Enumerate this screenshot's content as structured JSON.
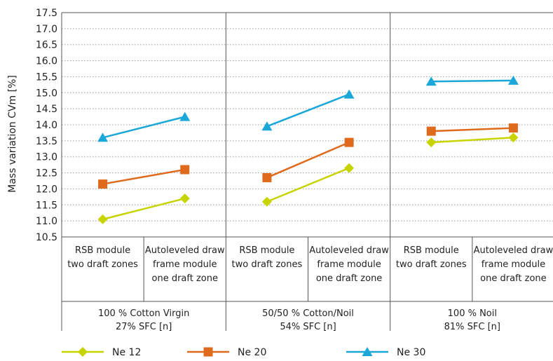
{
  "chart_data": {
    "type": "line",
    "title": "",
    "ylabel": "Mass variation CVm [%]",
    "ylim": [
      10.5,
      17.5
    ],
    "y_ticks": [
      "17.5",
      "17.0",
      "16.5",
      "16.0",
      "15.5",
      "15.0",
      "14.5",
      "14.0",
      "13.5",
      "13.0",
      "12.5",
      "12.0",
      "11.5",
      "11.0",
      "10.5"
    ],
    "grid": true,
    "legend_position": "bottom",
    "groups": [
      {
        "label_line1": "100 % Cotton Virgin",
        "label_line2": "27% SFC [n]",
        "categories": [
          {
            "line1": "RSB module",
            "line2": "two draft zones",
            "line3": ""
          },
          {
            "line1": "Autoleveled draw",
            "line2": "frame module",
            "line3": "one draft zone"
          }
        ]
      },
      {
        "label_line1": "50/50 % Cotton/Noil",
        "label_line2": "54% SFC [n]",
        "categories": [
          {
            "line1": "RSB module",
            "line2": "two draft zones",
            "line3": ""
          },
          {
            "line1": "Autoleveled draw",
            "line2": "frame module",
            "line3": "one draft zone"
          }
        ]
      },
      {
        "label_line1": "100 % Noil",
        "label_line2": "81% SFC [n]",
        "categories": [
          {
            "line1": "RSB module",
            "line2": "two draft zones",
            "line3": ""
          },
          {
            "line1": "Autoleveled draw",
            "line2": "frame module",
            "line3": "one draft zone"
          }
        ]
      }
    ],
    "series": [
      {
        "name": "Ne 12",
        "color": "#c8d400",
        "marker": "diamond",
        "values": [
          [
            11.05,
            11.7
          ],
          [
            11.6,
            12.65
          ],
          [
            13.45,
            13.6
          ]
        ]
      },
      {
        "name": "Ne 20",
        "color": "#e06a1b",
        "marker": "square",
        "values": [
          [
            12.15,
            12.6
          ],
          [
            12.35,
            13.45
          ],
          [
            13.8,
            13.9
          ]
        ]
      },
      {
        "name": "Ne 30",
        "color": "#1ba8d9",
        "marker": "triangle",
        "values": [
          [
            13.6,
            14.25
          ],
          [
            13.95,
            14.95
          ],
          [
            15.35,
            15.38
          ]
        ]
      }
    ]
  }
}
